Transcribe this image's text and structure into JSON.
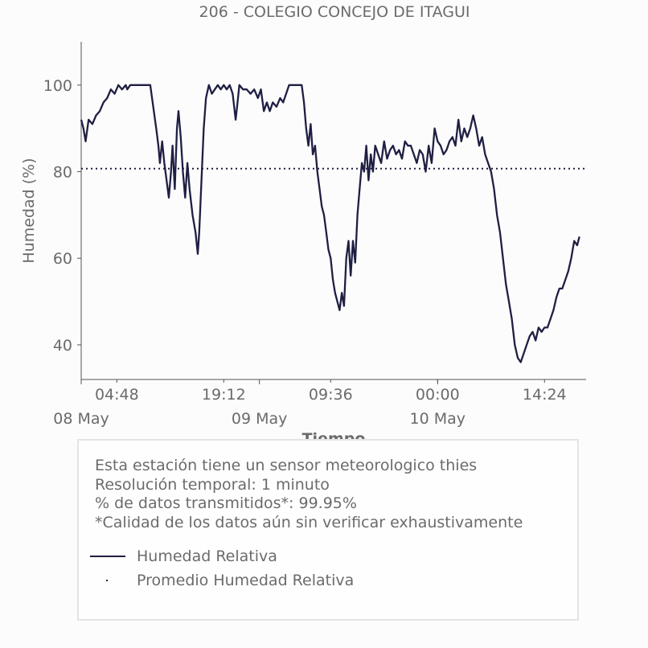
{
  "chart_data": {
    "type": "line",
    "title": "206 - COLEGIO CONCEJO DE ITAGUI",
    "xlabel": "Tiempo",
    "ylabel": "Humedad (%)",
    "ylim": [
      32,
      110
    ],
    "x_range_hours": [
      0,
      68
    ],
    "yticks": [
      40,
      60,
      80,
      100
    ],
    "xticks_time": [
      {
        "h": 4.8,
        "label": "04:48"
      },
      {
        "h": 19.2,
        "label": "19:12"
      },
      {
        "h": 33.6,
        "label": "09:36"
      },
      {
        "h": 48.0,
        "label": "00:00"
      },
      {
        "h": 62.4,
        "label": "14:24"
      }
    ],
    "xticks_date": [
      {
        "h": 0,
        "label": "08 May"
      },
      {
        "h": 24,
        "label": "09 May"
      },
      {
        "h": 48,
        "label": "10 May"
      }
    ],
    "series": [
      {
        "name": "Humedad Relativa",
        "color": "#1f1f43",
        "style": "solid",
        "points": [
          [
            0.0,
            92
          ],
          [
            0.3,
            90
          ],
          [
            0.6,
            87
          ],
          [
            1.0,
            92
          ],
          [
            1.5,
            91
          ],
          [
            2.0,
            93
          ],
          [
            2.5,
            94
          ],
          [
            3.0,
            96
          ],
          [
            3.5,
            97
          ],
          [
            4.0,
            99
          ],
          [
            4.5,
            98
          ],
          [
            5.0,
            100
          ],
          [
            5.5,
            99
          ],
          [
            6.0,
            100
          ],
          [
            6.2,
            99
          ],
          [
            6.6,
            100
          ],
          [
            7.5,
            100
          ],
          [
            8.5,
            100
          ],
          [
            9.3,
            100
          ],
          [
            9.7,
            95
          ],
          [
            10.1,
            90
          ],
          [
            10.4,
            86
          ],
          [
            10.6,
            82
          ],
          [
            10.9,
            87
          ],
          [
            11.2,
            82
          ],
          [
            11.5,
            78
          ],
          [
            11.8,
            74
          ],
          [
            12.1,
            80
          ],
          [
            12.3,
            86
          ],
          [
            12.6,
            76
          ],
          [
            12.9,
            90
          ],
          [
            13.1,
            94
          ],
          [
            13.4,
            88
          ],
          [
            13.7,
            80
          ],
          [
            14.0,
            74
          ],
          [
            14.3,
            82
          ],
          [
            14.6,
            76
          ],
          [
            15.0,
            70
          ],
          [
            15.4,
            66
          ],
          [
            15.7,
            61
          ],
          [
            15.9,
            66
          ],
          [
            16.2,
            78
          ],
          [
            16.5,
            90
          ],
          [
            16.8,
            97
          ],
          [
            17.2,
            100
          ],
          [
            17.6,
            98
          ],
          [
            18.0,
            99
          ],
          [
            18.4,
            100
          ],
          [
            18.8,
            99
          ],
          [
            19.2,
            100
          ],
          [
            19.6,
            99
          ],
          [
            20.0,
            100
          ],
          [
            20.4,
            98
          ],
          [
            20.8,
            92
          ],
          [
            21.0,
            95
          ],
          [
            21.3,
            100
          ],
          [
            21.8,
            99
          ],
          [
            22.3,
            99
          ],
          [
            22.8,
            98
          ],
          [
            23.3,
            99
          ],
          [
            23.8,
            97
          ],
          [
            24.2,
            99
          ],
          [
            24.6,
            94
          ],
          [
            25.0,
            96
          ],
          [
            25.4,
            94
          ],
          [
            25.8,
            96
          ],
          [
            26.3,
            95
          ],
          [
            26.8,
            97
          ],
          [
            27.2,
            96
          ],
          [
            27.6,
            98
          ],
          [
            28.0,
            100
          ],
          [
            28.6,
            100
          ],
          [
            29.2,
            100
          ],
          [
            29.7,
            100
          ],
          [
            30.0,
            96
          ],
          [
            30.3,
            90
          ],
          [
            30.6,
            86
          ],
          [
            30.9,
            91
          ],
          [
            31.2,
            84
          ],
          [
            31.5,
            86
          ],
          [
            31.8,
            80
          ],
          [
            32.1,
            76
          ],
          [
            32.4,
            72
          ],
          [
            32.7,
            70
          ],
          [
            33.0,
            66
          ],
          [
            33.3,
            62
          ],
          [
            33.6,
            60
          ],
          [
            33.9,
            55
          ],
          [
            34.2,
            52
          ],
          [
            34.5,
            50
          ],
          [
            34.8,
            48
          ],
          [
            35.1,
            52
          ],
          [
            35.4,
            49
          ],
          [
            35.7,
            60
          ],
          [
            36.0,
            64
          ],
          [
            36.3,
            56
          ],
          [
            36.6,
            64
          ],
          [
            36.9,
            59
          ],
          [
            37.2,
            70
          ],
          [
            37.5,
            76
          ],
          [
            37.8,
            82
          ],
          [
            38.1,
            80
          ],
          [
            38.4,
            86
          ],
          [
            38.7,
            78
          ],
          [
            39.0,
            84
          ],
          [
            39.3,
            80
          ],
          [
            39.6,
            86
          ],
          [
            40.0,
            84
          ],
          [
            40.4,
            82
          ],
          [
            40.8,
            87
          ],
          [
            41.2,
            83
          ],
          [
            41.6,
            85
          ],
          [
            42.0,
            86
          ],
          [
            42.4,
            84
          ],
          [
            42.8,
            85
          ],
          [
            43.2,
            83
          ],
          [
            43.6,
            87
          ],
          [
            44.0,
            86
          ],
          [
            44.4,
            86
          ],
          [
            44.8,
            84
          ],
          [
            45.2,
            82
          ],
          [
            45.6,
            85
          ],
          [
            46.0,
            84
          ],
          [
            46.4,
            80
          ],
          [
            46.8,
            86
          ],
          [
            47.2,
            82
          ],
          [
            47.6,
            90
          ],
          [
            48.0,
            87
          ],
          [
            48.4,
            86
          ],
          [
            48.8,
            84
          ],
          [
            49.2,
            85
          ],
          [
            49.6,
            87
          ],
          [
            50.0,
            88
          ],
          [
            50.4,
            86
          ],
          [
            50.8,
            92
          ],
          [
            51.2,
            87
          ],
          [
            51.6,
            90
          ],
          [
            52.0,
            88
          ],
          [
            52.4,
            90
          ],
          [
            52.8,
            93
          ],
          [
            53.2,
            90
          ],
          [
            53.6,
            86
          ],
          [
            54.0,
            88
          ],
          [
            54.4,
            84
          ],
          [
            54.8,
            82
          ],
          [
            55.2,
            80
          ],
          [
            55.6,
            76
          ],
          [
            56.0,
            70
          ],
          [
            56.4,
            66
          ],
          [
            56.8,
            60
          ],
          [
            57.2,
            54
          ],
          [
            57.6,
            50
          ],
          [
            58.0,
            46
          ],
          [
            58.4,
            40
          ],
          [
            58.8,
            37
          ],
          [
            59.2,
            36
          ],
          [
            59.6,
            38
          ],
          [
            60.0,
            40
          ],
          [
            60.4,
            42
          ],
          [
            60.8,
            43
          ],
          [
            61.2,
            41
          ],
          [
            61.6,
            44
          ],
          [
            62.0,
            43
          ],
          [
            62.4,
            44
          ],
          [
            62.8,
            44
          ],
          [
            63.2,
            46
          ],
          [
            63.6,
            48
          ],
          [
            64.0,
            51
          ],
          [
            64.4,
            53
          ],
          [
            64.8,
            53
          ],
          [
            65.2,
            55
          ],
          [
            65.6,
            57
          ],
          [
            66.0,
            60
          ],
          [
            66.4,
            64
          ],
          [
            66.8,
            63
          ],
          [
            67.1,
            65
          ]
        ]
      },
      {
        "name": "Promedio Humedad Relativa",
        "color": "#1f1f43",
        "style": "dotted",
        "value": 80.7
      }
    ]
  },
  "info": {
    "line1": "Esta estación tiene un sensor meteorologico thies",
    "line2": "Resolución temporal: 1 minuto",
    "line3": "% de datos transmitidos*: 99.95%",
    "line4": "*Calidad de los datos aún sin verificar exhaustivamente"
  },
  "legend": {
    "item1": "Humedad Relativa",
    "item2": "Promedio Humedad Relativa"
  }
}
